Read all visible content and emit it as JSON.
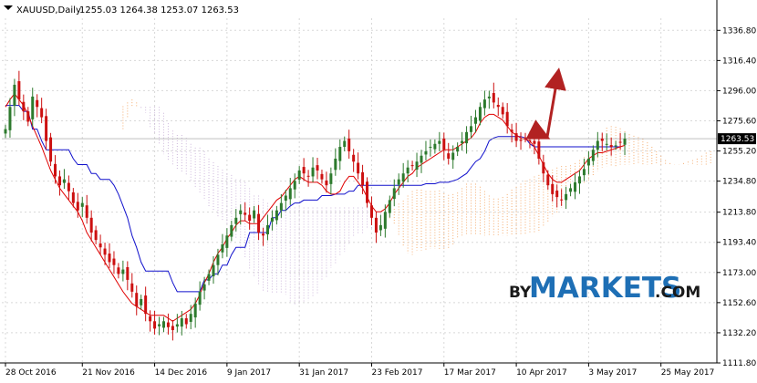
{
  "header": {
    "symbol_timeframe": "XAUUSD,Daily",
    "ohlc": "1255.03 1264.38 1253.07 1263.53"
  },
  "current_price_label": "1263.53",
  "watermark": {
    "prefix": "BY",
    "brand": "MARKETS",
    "suffix": ".COM"
  },
  "colors": {
    "bull": "#2d7a2d",
    "bear": "#cc1010",
    "kijun": "#1010cc",
    "tenkan": "#e00000",
    "cloud_bull": "#f4a460",
    "cloud_bear": "#c8b0d8",
    "forecast_arrow": "#b22222",
    "grid": "#d8d8d8",
    "price_tag_bg": "#000000",
    "watermark_blue": "#1e6fb5",
    "watermark_dark": "#1a1a1a"
  },
  "chart_data": {
    "type": "candlestick",
    "y_ticks": [
      "1336.80",
      "1316.40",
      "1296.00",
      "1275.60",
      "1255.20",
      "1234.80",
      "1213.80",
      "1193.40",
      "1173.00",
      "1152.60",
      "1132.20",
      "1111.80"
    ],
    "y_tick_values": [
      1336.8,
      1316.4,
      1296.0,
      1275.6,
      1255.2,
      1234.8,
      1213.8,
      1193.4,
      1173.0,
      1152.6,
      1132.2,
      1111.8
    ],
    "ylim": [
      1111.8,
      1345.0
    ],
    "x_ticks": [
      "28 Oct 2016",
      "21 Nov 2016",
      "14 Dec 2016",
      "9 Jan 2017",
      "31 Jan 2017",
      "23 Feb 2017",
      "17 Mar 2017",
      "10 Apr 2017",
      "3 May 2017",
      "25 May 2017"
    ],
    "x_tick_index": [
      0,
      17,
      33,
      49,
      65,
      81,
      97,
      113,
      129,
      145
    ],
    "close_path": [
      1270,
      1285,
      1300,
      1290,
      1282,
      1275,
      1292,
      1285,
      1278,
      1262,
      1248,
      1238,
      1232,
      1236,
      1228,
      1220,
      1215,
      1220,
      1210,
      1200,
      1195,
      1190,
      1185,
      1180,
      1178,
      1172,
      1175,
      1168,
      1160,
      1150,
      1155,
      1145,
      1140,
      1135,
      1138,
      1140,
      1136,
      1134,
      1138,
      1142,
      1138,
      1145,
      1152,
      1160,
      1165,
      1172,
      1178,
      1185,
      1192,
      1198,
      1205,
      1210,
      1215,
      1212,
      1208,
      1215,
      1200,
      1198,
      1205,
      1210,
      1215,
      1220,
      1225,
      1230,
      1235,
      1242,
      1240,
      1238,
      1244,
      1242,
      1236,
      1232,
      1240,
      1250,
      1258,
      1262,
      1255,
      1248,
      1240,
      1232,
      1220,
      1210,
      1200,
      1205,
      1214,
      1222,
      1230,
      1236,
      1240,
      1244,
      1245,
      1248,
      1252,
      1255,
      1258,
      1260,
      1262,
      1256,
      1250,
      1254,
      1258,
      1262,
      1268,
      1272,
      1278,
      1285,
      1290,
      1292,
      1288,
      1285,
      1280,
      1272,
      1268,
      1262,
      1262,
      1264,
      1262,
      1260,
      1250,
      1240,
      1232,
      1226,
      1224,
      1222,
      1226,
      1230,
      1234,
      1238,
      1243,
      1250,
      1256,
      1262,
      1262,
      1260,
      1258,
      1259,
      1261,
      1263.53
    ],
    "kijun": [
      1286,
      1286,
      1286,
      1286,
      1282,
      1282,
      1270,
      1270,
      1262,
      1256,
      1256,
      1256,
      1256,
      1256,
      1256,
      1250,
      1246,
      1246,
      1246,
      1240,
      1240,
      1236,
      1236,
      1236,
      1232,
      1226,
      1218,
      1210,
      1198,
      1190,
      1180,
      1174,
      1174,
      1174,
      1174,
      1174,
      1174,
      1166,
      1160,
      1160,
      1160,
      1160,
      1160,
      1160,
      1168,
      1168,
      1172,
      1172,
      1178,
      1178,
      1185,
      1190,
      1190,
      1190,
      1200,
      1200,
      1200,
      1200,
      1200,
      1210,
      1210,
      1215,
      1215,
      1218,
      1220,
      1220,
      1222,
      1222,
      1222,
      1222,
      1225,
      1225,
      1225,
      1226,
      1226,
      1226,
      1228,
      1228,
      1232,
      1232,
      1232,
      1232,
      1232,
      1232,
      1232,
      1232,
      1232,
      1232,
      1232,
      1232,
      1232,
      1232,
      1232,
      1233,
      1233,
      1233,
      1234,
      1234,
      1234,
      1235,
      1236,
      1238,
      1240,
      1244,
      1248,
      1250,
      1255,
      1262,
      1264,
      1265,
      1265,
      1265,
      1265,
      1265,
      1265,
      1264,
      1260,
      1258,
      1258,
      1258,
      1258,
      1258,
      1258,
      1258,
      1258,
      1258,
      1258,
      1258,
      1258,
      1258,
      1258,
      1258,
      1258,
      1258,
      1258,
      1258,
      1258
    ],
    "tenkan": [
      1285,
      1290,
      1294,
      1290,
      1286,
      1280,
      1272,
      1265,
      1258,
      1250,
      1242,
      1236,
      1230,
      1226,
      1222,
      1218,
      1214,
      1208,
      1200,
      1195,
      1190,
      1185,
      1180,
      1175,
      1170,
      1165,
      1160,
      1156,
      1152,
      1150,
      1148,
      1146,
      1144,
      1144,
      1144,
      1144,
      1142,
      1140,
      1142,
      1144,
      1146,
      1148,
      1152,
      1158,
      1166,
      1172,
      1180,
      1186,
      1190,
      1196,
      1200,
      1205,
      1208,
      1208,
      1206,
      1206,
      1206,
      1210,
      1214,
      1218,
      1222,
      1224,
      1228,
      1232,
      1236,
      1238,
      1236,
      1234,
      1234,
      1234,
      1232,
      1228,
      1226,
      1226,
      1228,
      1234,
      1238,
      1238,
      1234,
      1230,
      1224,
      1218,
      1214,
      1214,
      1216,
      1220,
      1226,
      1230,
      1234,
      1238,
      1240,
      1244,
      1246,
      1248,
      1250,
      1252,
      1254,
      1256,
      1256,
      1256,
      1258,
      1260,
      1262,
      1264,
      1268,
      1274,
      1278,
      1280,
      1280,
      1278,
      1276,
      1272,
      1268,
      1266,
      1264,
      1263,
      1262,
      1258,
      1252,
      1246,
      1240,
      1236,
      1234,
      1234,
      1236,
      1238,
      1240,
      1242,
      1246,
      1250,
      1252,
      1254,
      1254,
      1255,
      1256,
      1257,
      1258,
      1259
    ]
  }
}
